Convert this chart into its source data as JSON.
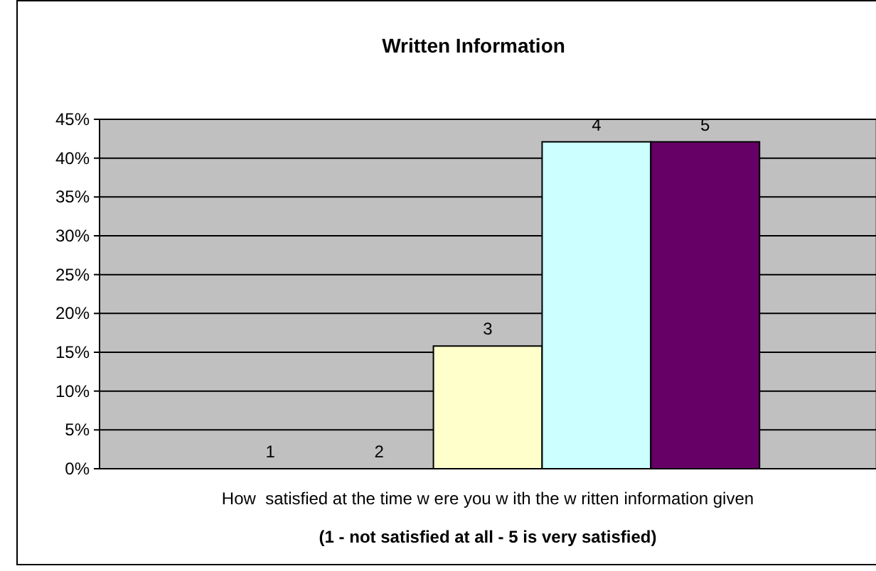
{
  "chart_data": {
    "type": "bar",
    "title": "Written Information",
    "xlabel": "How  satisfied at the time w ere you w ith the w ritten information given",
    "annotations": [
      "(1 - not satisfied at all - 5 is very satisfied)"
    ],
    "categories": [
      null
    ],
    "series": [
      {
        "name": "1",
        "values": [
          0
        ]
      },
      {
        "name": "2",
        "values": [
          0
        ]
      },
      {
        "name": "3",
        "color": "#ffffcc",
        "values": [
          15.8
        ]
      },
      {
        "name": "4",
        "color": "#ccffff",
        "values": [
          42.1
        ]
      },
      {
        "name": "5",
        "color": "#660066",
        "values": [
          42.1
        ]
      }
    ],
    "ylim": [
      0,
      45
    ],
    "yticks": [
      {
        "value": 0,
        "label": "0%"
      },
      {
        "value": 5,
        "label": "5%"
      },
      {
        "value": 10,
        "label": "10%"
      },
      {
        "value": 15,
        "label": "15%"
      },
      {
        "value": 20,
        "label": "20%"
      },
      {
        "value": 25,
        "label": "25%"
      },
      {
        "value": 30,
        "label": "30%"
      },
      {
        "value": 35,
        "label": "35%"
      },
      {
        "value": 40,
        "label": "40%"
      },
      {
        "value": 45,
        "label": "45%"
      }
    ],
    "grid": "y"
  }
}
